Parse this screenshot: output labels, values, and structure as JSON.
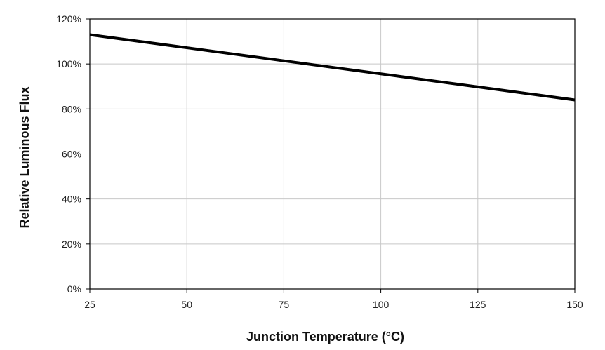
{
  "chart_data": {
    "type": "line",
    "title": "",
    "xlabel": "Junction Temperature (°C)",
    "ylabel": "Relative Luminous Flux",
    "xlim": [
      25,
      150
    ],
    "ylim": [
      0,
      120
    ],
    "x_ticks": [
      25,
      50,
      75,
      100,
      125,
      150
    ],
    "y_ticks": [
      0,
      20,
      40,
      60,
      80,
      100,
      120
    ],
    "x_tick_labels": [
      "25",
      "50",
      "75",
      "100",
      "125",
      "150"
    ],
    "y_tick_labels": [
      "0%",
      "20%",
      "40%",
      "60%",
      "80%",
      "100%",
      "120%"
    ],
    "grid": true,
    "legend": "none",
    "series": [
      {
        "x": [
          25,
          50,
          75,
          100,
          125,
          150
        ],
        "y": [
          113,
          107.2,
          101.4,
          95.6,
          89.8,
          84
        ],
        "color": "#000000"
      }
    ]
  }
}
